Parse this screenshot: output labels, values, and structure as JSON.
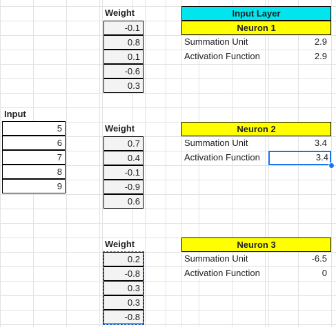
{
  "input": {
    "label": "Input",
    "values": [
      "5",
      "6",
      "7",
      "8",
      "9"
    ]
  },
  "weights": [
    {
      "label": "Weight",
      "values": [
        "-0.1",
        "0.8",
        "0.1",
        "-0.6",
        "0.3"
      ]
    },
    {
      "label": "Weight",
      "values": [
        "0.7",
        "0.4",
        "-0.1",
        "-0.9",
        "0.6"
      ]
    },
    {
      "label": "Weight",
      "values": [
        "0.2",
        "-0.8",
        "0.3",
        "0.3",
        "-0.8"
      ]
    }
  ],
  "input_layer": {
    "title": "Input Layer"
  },
  "neurons": [
    {
      "title": "Neuron 1",
      "sum_label": "Summation Unit",
      "sum_value": "2.9",
      "act_label": "Activation Function",
      "act_value": "2.9"
    },
    {
      "title": "Neuron 2",
      "sum_label": "Summation Unit",
      "sum_value": "3.4",
      "act_label": "Activation Function",
      "act_value": "3.4"
    },
    {
      "title": "Neuron 3",
      "sum_label": "Summation Unit",
      "sum_value": "-6.5",
      "act_label": "Activation Function",
      "act_value": "0"
    }
  ],
  "colors": {
    "header_yellow": "#ffff00",
    "header_cyan": "#00e5ee",
    "selection": "#1a73e8"
  }
}
